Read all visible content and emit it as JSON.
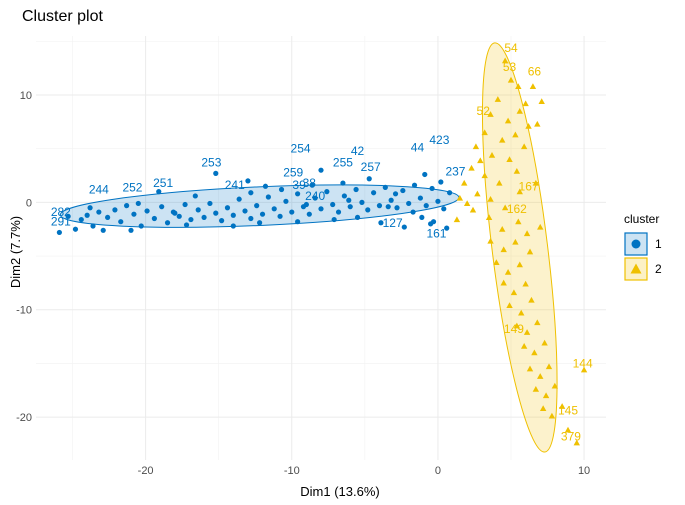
{
  "chart_data": {
    "type": "scatter",
    "title": "Cluster plot",
    "xlabel": "Dim1 (13.6%)",
    "ylabel": "Dim2 (7.7%)",
    "xlim": [
      -27.5,
      11.5
    ],
    "ylim": [
      -24,
      15.5
    ],
    "x_ticks": [
      -20,
      -10,
      0,
      10
    ],
    "y_ticks": [
      10,
      0,
      -10,
      -20
    ],
    "grid": true,
    "legend_title": "cluster",
    "legend_position": "right",
    "series": [
      {
        "name": "1",
        "color": "#0073C2",
        "marker": "circle",
        "points": [
          [
            -25.9,
            -2.8
          ],
          [
            -25.3,
            -1.3
          ],
          [
            -24.8,
            -2.5
          ],
          [
            -24.4,
            -1.6
          ],
          [
            -24.0,
            -1.2
          ],
          [
            -23.6,
            -2.2
          ],
          [
            -23.2,
            -0.9
          ],
          [
            -22.9,
            -2.6
          ],
          [
            -22.6,
            -1.4
          ],
          [
            -22.1,
            -0.7
          ],
          [
            -21.7,
            -1.8
          ],
          [
            -21.3,
            -0.3
          ],
          [
            -20.8,
            -1.1
          ],
          [
            -20.3,
            -2.2
          ],
          [
            -19.9,
            -0.8
          ],
          [
            -19.4,
            -1.5
          ],
          [
            -18.9,
            -0.4
          ],
          [
            -18.5,
            -1.9
          ],
          [
            -18.1,
            -0.9
          ],
          [
            -17.7,
            -1.3
          ],
          [
            -17.3,
            -0.2
          ],
          [
            -16.9,
            -1.6
          ],
          [
            -16.4,
            -0.7
          ],
          [
            -16.0,
            -1.4
          ],
          [
            -15.6,
            -0.1
          ],
          [
            -15.2,
            -1.0
          ],
          [
            -14.8,
            -1.7
          ],
          [
            -14.4,
            -0.5
          ],
          [
            -14.0,
            -1.2
          ],
          [
            -13.6,
            0.3
          ],
          [
            -13.2,
            -0.8
          ],
          [
            -12.8,
            -1.5
          ],
          [
            -12.4,
            -0.3
          ],
          [
            -12.0,
            -1.1
          ],
          [
            -11.6,
            0.5
          ],
          [
            -11.2,
            -0.6
          ],
          [
            -10.8,
            -1.3
          ],
          [
            -10.4,
            0.1
          ],
          [
            -10.0,
            -0.9
          ],
          [
            -9.6,
            0.8
          ],
          [
            -9.2,
            -0.4
          ],
          [
            -8.8,
            -1.1
          ],
          [
            -8.4,
            0.4
          ],
          [
            -8.0,
            -0.6
          ],
          [
            -7.6,
            1.0
          ],
          [
            -7.2,
            -0.2
          ],
          [
            -6.8,
            -0.9
          ],
          [
            -6.4,
            0.6
          ],
          [
            -6.0,
            -0.4
          ],
          [
            -5.6,
            1.2
          ],
          [
            -5.2,
            0.0
          ],
          [
            -4.8,
            -0.7
          ],
          [
            -4.4,
            0.9
          ],
          [
            -4.0,
            -0.3
          ],
          [
            -3.6,
            1.4
          ],
          [
            -3.2,
            0.2
          ],
          [
            -2.8,
            -0.5
          ],
          [
            -2.4,
            1.1
          ],
          [
            -2.0,
            -0.1
          ],
          [
            -1.6,
            1.6
          ],
          [
            -1.2,
            0.4
          ],
          [
            -0.8,
            -0.3
          ],
          [
            -0.4,
            1.3
          ],
          [
            0.0,
            0.1
          ],
          [
            0.4,
            -0.6
          ],
          [
            0.8,
            0.9
          ],
          [
            -15.2,
            2.7
          ],
          [
            -13.0,
            2.0
          ],
          [
            -8.0,
            3.0
          ],
          [
            -2.3,
            -2.3
          ],
          [
            -0.3,
            -1.8
          ],
          [
            0.6,
            -2.4
          ],
          [
            -19.1,
            1.0
          ],
          [
            -11.8,
            1.5
          ],
          [
            -6.5,
            1.8
          ],
          [
            -3.9,
            -1.9
          ],
          [
            -1.1,
            -1.4
          ],
          [
            -17.2,
            -2.1
          ],
          [
            -9.6,
            -1.8
          ],
          [
            -4.7,
            2.2
          ],
          [
            -0.9,
            2.6
          ],
          [
            0.2,
            1.9
          ],
          [
            -12.8,
            0.9
          ],
          [
            -7.1,
            -1.6
          ],
          [
            -20.5,
            -0.1
          ],
          [
            -2.9,
            0.8
          ],
          [
            -14.0,
            -2.2
          ],
          [
            -5.5,
            -1.4
          ],
          [
            -10.7,
            1.2
          ],
          [
            -1.7,
            -0.9
          ],
          [
            -16.6,
            0.6
          ],
          [
            -8.6,
            1.6
          ],
          [
            -3.4,
            -0.4
          ],
          [
            -0.5,
            -2.0
          ],
          [
            -18.0,
            -1.0
          ],
          [
            -12.2,
            -1.9
          ],
          [
            -6.1,
            0.2
          ],
          [
            -23.8,
            -0.5
          ],
          [
            -21.0,
            -2.6
          ],
          [
            -9.0,
            -0.2
          ]
        ],
        "labels": [
          [
            "253",
            -15.5,
            3.7
          ],
          [
            "254",
            -9.4,
            5.0
          ],
          [
            "42",
            -5.5,
            4.8
          ],
          [
            "255",
            -6.5,
            3.7
          ],
          [
            "257",
            -4.6,
            3.3
          ],
          [
            "259",
            -9.9,
            2.8
          ],
          [
            "44",
            -1.4,
            5.1
          ],
          [
            "423",
            0.1,
            5.8
          ],
          [
            "237",
            1.2,
            2.9
          ],
          [
            "251",
            -18.8,
            1.8
          ],
          [
            "252",
            -20.9,
            1.4
          ],
          [
            "244",
            -23.2,
            1.2
          ],
          [
            "241",
            -13.9,
            1.6
          ],
          [
            "240",
            -8.4,
            0.6
          ],
          [
            "291",
            -25.8,
            -1.8
          ],
          [
            "282",
            -25.8,
            -0.9
          ],
          [
            "127",
            -3.1,
            -1.9
          ],
          [
            "161",
            -0.1,
            -2.9
          ],
          [
            "38",
            -8.8,
            1.8
          ],
          [
            "39",
            -9.5,
            1.6
          ]
        ]
      },
      {
        "name": "2",
        "color": "#EFC000",
        "marker": "triangle",
        "points": [
          [
            4.6,
            13.2
          ],
          [
            5.0,
            11.4
          ],
          [
            5.5,
            10.8
          ],
          [
            4.1,
            9.6
          ],
          [
            3.6,
            8.2
          ],
          [
            4.8,
            7.6
          ],
          [
            5.6,
            8.5
          ],
          [
            6.0,
            9.2
          ],
          [
            3.2,
            6.5
          ],
          [
            4.4,
            5.8
          ],
          [
            5.3,
            6.3
          ],
          [
            6.2,
            7.1
          ],
          [
            2.6,
            5.2
          ],
          [
            3.7,
            4.4
          ],
          [
            4.9,
            4.0
          ],
          [
            5.9,
            5.2
          ],
          [
            2.3,
            3.2
          ],
          [
            3.2,
            2.5
          ],
          [
            4.2,
            1.8
          ],
          [
            5.4,
            2.9
          ],
          [
            1.8,
            1.8
          ],
          [
            2.7,
            0.8
          ],
          [
            3.6,
            0.3
          ],
          [
            4.6,
            -0.5
          ],
          [
            5.6,
            1.0
          ],
          [
            1.5,
            0.4
          ],
          [
            2.4,
            -0.7
          ],
          [
            3.5,
            -1.4
          ],
          [
            4.4,
            -2.5
          ],
          [
            5.5,
            -1.8
          ],
          [
            3.6,
            -3.6
          ],
          [
            4.5,
            -4.4
          ],
          [
            5.3,
            -3.7
          ],
          [
            6.1,
            -2.9
          ],
          [
            4.0,
            -5.6
          ],
          [
            4.8,
            -6.5
          ],
          [
            5.6,
            -5.8
          ],
          [
            6.3,
            -4.6
          ],
          [
            4.5,
            -7.5
          ],
          [
            5.2,
            -8.4
          ],
          [
            6.0,
            -7.6
          ],
          [
            4.9,
            -9.6
          ],
          [
            5.7,
            -10.3
          ],
          [
            6.4,
            -9.1
          ],
          [
            5.4,
            -11.5
          ],
          [
            6.1,
            -12.1
          ],
          [
            6.8,
            -11.2
          ],
          [
            5.9,
            -13.4
          ],
          [
            6.6,
            -14.0
          ],
          [
            7.3,
            -13.1
          ],
          [
            6.3,
            -15.5
          ],
          [
            7.0,
            -16.2
          ],
          [
            7.6,
            -15.3
          ],
          [
            6.7,
            -17.4
          ],
          [
            7.4,
            -18.0
          ],
          [
            8.0,
            -17.1
          ],
          [
            7.2,
            -19.2
          ],
          [
            7.8,
            -19.9
          ],
          [
            8.5,
            -19.0
          ],
          [
            8.9,
            -21.2
          ],
          [
            9.5,
            -22.4
          ],
          [
            10.0,
            -15.6
          ],
          [
            6.5,
            10.8
          ],
          [
            7.1,
            9.4
          ],
          [
            6.8,
            7.3
          ],
          [
            2.0,
            -0.1
          ],
          [
            1.3,
            -1.6
          ],
          [
            2.9,
            3.9
          ],
          [
            7.0,
            -2.3
          ],
          [
            6.7,
            1.8
          ]
        ],
        "labels": [
          [
            "54",
            5.0,
            14.4
          ],
          [
            "53",
            4.9,
            12.6
          ],
          [
            "66",
            6.6,
            12.2
          ],
          [
            "52",
            3.1,
            8.5
          ],
          [
            "167",
            6.2,
            1.5
          ],
          [
            "144",
            9.9,
            -15.0
          ],
          [
            "145",
            8.9,
            -19.4
          ],
          [
            "379",
            9.1,
            -21.8
          ],
          [
            "149",
            5.2,
            -11.8
          ],
          [
            "162",
            5.4,
            -0.6
          ]
        ]
      }
    ],
    "ellipses": [
      {
        "cluster": "1",
        "cx": -12.2,
        "cy": -0.35,
        "rx": 13.65,
        "ry": 1.8,
        "angle_deg": 2.5
      },
      {
        "cluster": "2",
        "cx": 5.6,
        "cy": -4.2,
        "rx": 1.9,
        "ry": 19.2,
        "angle_deg": 7
      }
    ]
  }
}
